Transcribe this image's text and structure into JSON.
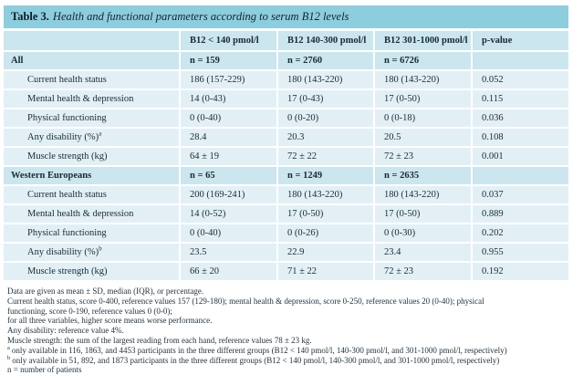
{
  "title": {
    "label": "Table 3.",
    "caption": "Health and functional parameters according to serum B12 levels"
  },
  "table": {
    "columns": [
      "",
      "B12 < 140 pmol/l",
      "B12 140-300 pmol/l",
      "B12 301-1000 pmol/l",
      "p-value"
    ],
    "sections": [
      {
        "label": "All",
        "n": [
          "n = 159",
          "n = 2760",
          "n = 6726"
        ],
        "rows": [
          {
            "label": "Current health status",
            "sup": "",
            "values": [
              "186 (157-229)",
              "180 (143-220)",
              "180 (143-220)"
            ],
            "p": "0.052"
          },
          {
            "label": "Mental health & depression",
            "sup": "",
            "values": [
              "14 (0-43)",
              "17 (0-43)",
              "17 (0-50)"
            ],
            "p": "0.115"
          },
          {
            "label": "Physical functioning",
            "sup": "",
            "values": [
              "0 (0-40)",
              "0 (0-20)",
              "0 (0-18)"
            ],
            "p": "0.036"
          },
          {
            "label": "Any disability (%)",
            "sup": "a",
            "values": [
              "28.4",
              "20.3",
              "20.5"
            ],
            "p": "0.108"
          },
          {
            "label": "Muscle strength (kg)",
            "sup": "",
            "values": [
              "64 ± 19",
              "72 ± 22",
              "72 ± 23"
            ],
            "p": "0.001"
          }
        ]
      },
      {
        "label": "Western Europeans",
        "n": [
          "n = 65",
          "n = 1249",
          "n = 2635"
        ],
        "rows": [
          {
            "label": "Current health status",
            "sup": "",
            "values": [
              "200 (169-241)",
              "180 (143-220)",
              "180 (143-220)"
            ],
            "p": "0.037"
          },
          {
            "label": "Mental health & depression",
            "sup": "",
            "values": [
              "14 (0-52)",
              "17 (0-50)",
              "17 (0-50)"
            ],
            "p": "0.889"
          },
          {
            "label": "Physical functioning",
            "sup": "",
            "values": [
              "0 (0-40)",
              "0 (0-26)",
              "0 (0-30)"
            ],
            "p": "0.202"
          },
          {
            "label": "Any disability (%)",
            "sup": "b",
            "values": [
              "23.5",
              "22.9",
              "23.4"
            ],
            "p": "0.955"
          },
          {
            "label": "Muscle strength (kg)",
            "sup": "",
            "values": [
              "66 ± 20",
              "71 ± 22",
              "72 ± 23"
            ],
            "p": "0.192"
          }
        ]
      }
    ]
  },
  "footnotes": {
    "lines": [
      {
        "marker": "",
        "text": "Data are given as mean ± SD, median (IQR), or percentage."
      },
      {
        "marker": "",
        "text": "Current health status, score 0-400, reference values 157 (129-180); mental health & depression, score 0-250, reference values 20 (0-40); physical"
      },
      {
        "marker": "",
        "text": "functioning, score 0-190, reference values 0 (0-0);"
      },
      {
        "marker": "",
        "text": "for all three variables, higher score means worse performance."
      },
      {
        "marker": "",
        "text": "Any disability: reference value 4%."
      },
      {
        "marker": "",
        "text": "Muscle strength: the sum of the largest reading from each hand, reference values 78 ± 23 kg."
      },
      {
        "marker": "a",
        "text": "only available in 116, 1863, and 4453 participants in the three different groups (B12 < 140 pmol/l, 140-300 pmol/l, and 301-1000 pmol/l, respectively)"
      },
      {
        "marker": "b",
        "text": "only available in 51, 892, and 1873 participants in the three different groups (B12 < 140 pmol/l, 140-300 pmol/l, and 301-1000 pmol/l, respectively)"
      },
      {
        "marker": "",
        "text": "n = number of patients"
      }
    ]
  },
  "colors": {
    "title_band": "#8ccede",
    "header_and_section_row": "#cbe6ee",
    "data_row": "#e2f0f6",
    "separator": "#ffffff",
    "text": "#1b2a33"
  }
}
